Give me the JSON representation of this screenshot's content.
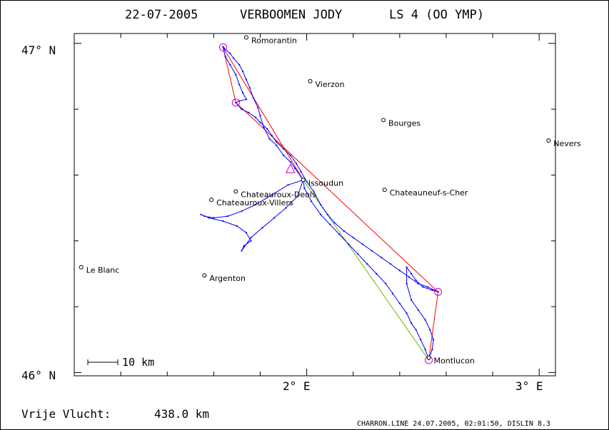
{
  "header": {
    "date": "22-07-2005",
    "pilot": "VERBOOMEN JODY",
    "glider": "LS 4 (OO YMP)"
  },
  "axes": {
    "y_labels": [
      {
        "value": 47,
        "text": "47° N"
      },
      {
        "value": 46,
        "text": "46° N"
      }
    ],
    "x_labels": [
      {
        "value": 2,
        "text": "2° E"
      },
      {
        "value": 3,
        "text": "3° E"
      }
    ]
  },
  "cities": [
    {
      "name": "Romorantin",
      "lon": 1.74,
      "lat": 47.018
    },
    {
      "name": "Vierzon",
      "lon": 2.015,
      "lat": 46.885
    },
    {
      "name": "Bourges",
      "lon": 2.33,
      "lat": 46.767
    },
    {
      "name": "Nevers",
      "lon": 3.04,
      "lat": 46.705
    },
    {
      "name": "Issoudun",
      "lon": 1.985,
      "lat": 46.585
    },
    {
      "name": "Chateauroux-Deols",
      "lon": 1.695,
      "lat": 46.55
    },
    {
      "name": "Chateauneuf-s-Cher",
      "lon": 2.335,
      "lat": 46.555
    },
    {
      "name": "Chateauroux-Villers",
      "lon": 1.59,
      "lat": 46.525
    },
    {
      "name": "Le Blanc",
      "lon": 1.03,
      "lat": 46.32
    },
    {
      "name": "Argenton",
      "lon": 1.56,
      "lat": 46.295
    },
    {
      "name": "Montlucon",
      "lon": 2.525,
      "lat": 46.045
    }
  ],
  "task": {
    "turnpoints": [
      {
        "lon": 1.985,
        "lat": 46.585
      },
      {
        "lon": 1.64,
        "lat": 46.988
      },
      {
        "lon": 1.695,
        "lat": 46.82
      },
      {
        "lon": 2.565,
        "lat": 46.245
      },
      {
        "lon": 2.525,
        "lat": 46.038
      },
      {
        "lon": 1.985,
        "lat": 46.585
      }
    ],
    "colors": {
      "task": "#ff0000",
      "closing": "#66bb00",
      "track": "#0000ff",
      "marker": "#cc00cc"
    }
  },
  "track": [
    [
      1.985,
      46.585
    ],
    [
      1.95,
      46.62
    ],
    [
      1.93,
      46.64
    ],
    [
      1.9,
      46.66
    ],
    [
      1.87,
      46.69
    ],
    [
      1.84,
      46.71
    ],
    [
      1.815,
      46.745
    ],
    [
      1.8,
      46.78
    ],
    [
      1.79,
      46.805
    ],
    [
      1.77,
      46.835
    ],
    [
      1.755,
      46.865
    ],
    [
      1.74,
      46.89
    ],
    [
      1.725,
      46.915
    ],
    [
      1.71,
      46.935
    ],
    [
      1.685,
      46.955
    ],
    [
      1.67,
      46.97
    ],
    [
      1.645,
      46.985
    ],
    [
      1.64,
      46.99
    ],
    [
      1.65,
      46.96
    ],
    [
      1.67,
      46.935
    ],
    [
      1.695,
      46.905
    ],
    [
      1.71,
      46.875
    ],
    [
      1.725,
      46.85
    ],
    [
      1.74,
      46.83
    ],
    [
      1.71,
      46.825
    ],
    [
      1.695,
      46.82
    ],
    [
      1.72,
      46.8
    ],
    [
      1.75,
      46.79
    ],
    [
      1.78,
      46.775
    ],
    [
      1.8,
      46.76
    ],
    [
      1.83,
      46.74
    ],
    [
      1.85,
      46.72
    ],
    [
      1.87,
      46.7
    ],
    [
      1.9,
      46.68
    ],
    [
      1.93,
      46.66
    ],
    [
      1.955,
      46.635
    ],
    [
      1.975,
      46.61
    ],
    [
      2.0,
      46.58
    ],
    [
      2.03,
      46.55
    ],
    [
      2.06,
      46.51
    ],
    [
      2.09,
      46.48
    ],
    [
      2.12,
      46.455
    ],
    [
      2.16,
      46.43
    ],
    [
      2.2,
      46.41
    ],
    [
      2.24,
      46.39
    ],
    [
      2.28,
      46.37
    ],
    [
      2.32,
      46.35
    ],
    [
      2.36,
      46.33
    ],
    [
      2.4,
      46.31
    ],
    [
      2.44,
      46.29
    ],
    [
      2.48,
      46.27
    ],
    [
      2.52,
      46.26
    ],
    [
      2.565,
      46.245
    ],
    [
      2.54,
      46.25
    ],
    [
      2.5,
      46.26
    ],
    [
      2.47,
      46.28
    ],
    [
      2.45,
      46.3
    ],
    [
      2.43,
      46.32
    ],
    [
      2.43,
      46.27
    ],
    [
      2.45,
      46.22
    ],
    [
      2.48,
      46.19
    ],
    [
      2.51,
      46.16
    ],
    [
      2.53,
      46.13
    ],
    [
      2.545,
      46.1
    ],
    [
      2.54,
      46.07
    ],
    [
      2.525,
      46.04
    ],
    [
      2.51,
      46.07
    ],
    [
      2.49,
      46.1
    ],
    [
      2.47,
      46.13
    ],
    [
      2.45,
      46.15
    ],
    [
      2.43,
      46.18
    ],
    [
      2.4,
      46.21
    ],
    [
      2.37,
      46.24
    ],
    [
      2.34,
      46.27
    ],
    [
      2.3,
      46.3
    ],
    [
      2.26,
      46.33
    ],
    [
      2.22,
      46.36
    ],
    [
      2.18,
      46.39
    ],
    [
      2.14,
      46.42
    ],
    [
      2.1,
      46.45
    ],
    [
      2.06,
      46.48
    ],
    [
      2.02,
      46.52
    ],
    [
      1.99,
      46.56
    ],
    [
      1.985,
      46.585
    ]
  ],
  "track_west": [
    [
      1.985,
      46.585
    ],
    [
      1.92,
      46.57
    ],
    [
      1.85,
      46.54
    ],
    [
      1.78,
      46.51
    ],
    [
      1.72,
      46.49
    ],
    [
      1.66,
      46.475
    ],
    [
      1.6,
      46.47
    ],
    [
      1.56,
      46.475
    ],
    [
      1.545,
      46.48
    ],
    [
      1.58,
      46.47
    ],
    [
      1.64,
      46.46
    ],
    [
      1.7,
      46.445
    ],
    [
      1.74,
      46.425
    ],
    [
      1.76,
      46.4
    ],
    [
      1.73,
      46.385
    ],
    [
      1.72,
      46.37
    ],
    [
      1.76,
      46.41
    ],
    [
      1.81,
      46.44
    ],
    [
      1.86,
      46.47
    ],
    [
      1.91,
      46.5
    ],
    [
      1.96,
      46.535
    ],
    [
      1.985,
      46.585
    ]
  ],
  "scale": {
    "label": "10 km"
  },
  "distance": {
    "label": "Vrije Vlucht:",
    "value": "438.0 km"
  },
  "footer": "CHARRON.LINE 24.07.2005, 02:01:50, DISLIN 8.3"
}
